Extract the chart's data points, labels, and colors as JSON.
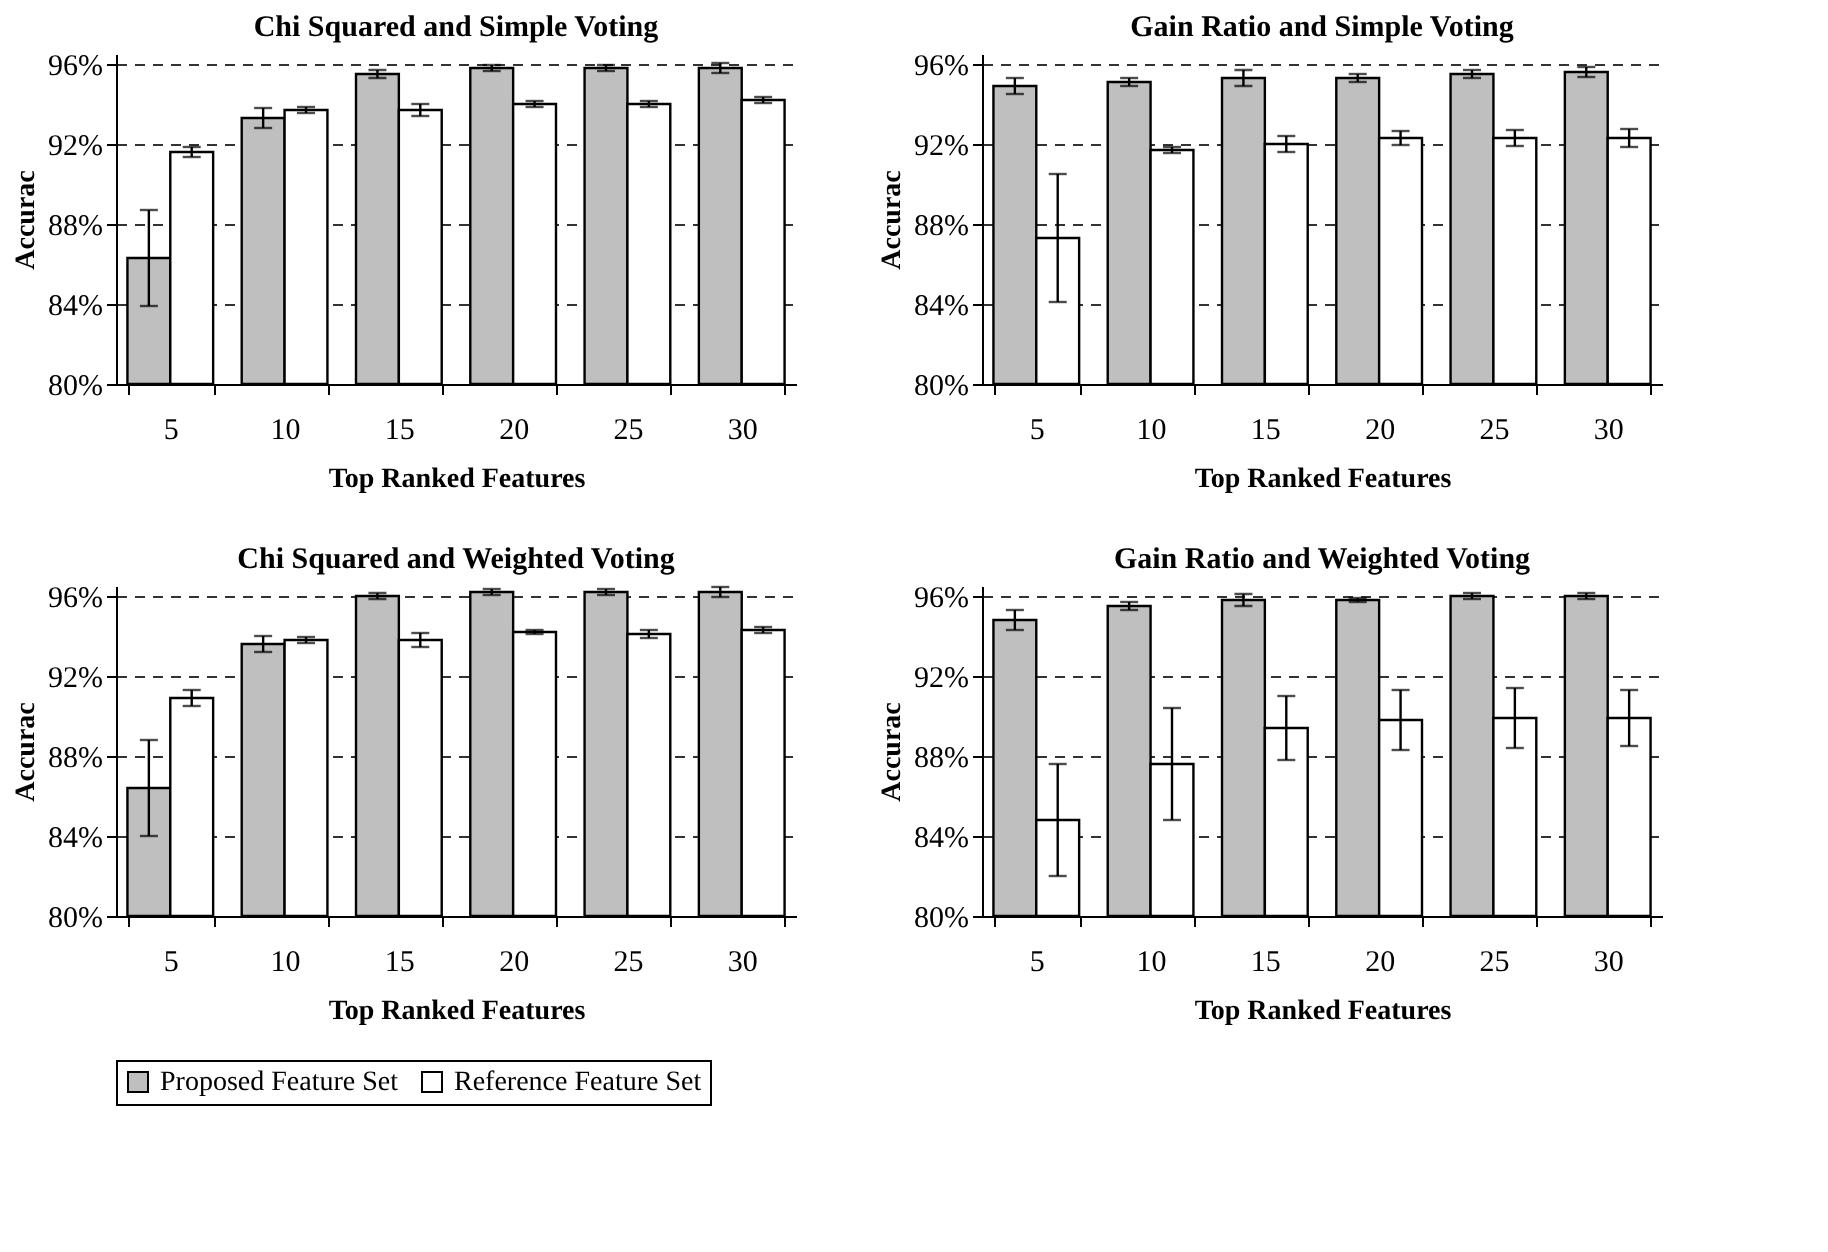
{
  "chart_data": [
    {
      "type": "bar",
      "title": "Chi Squared and Simple Voting",
      "xlabel": "Top Ranked Features",
      "ylabel": "Accurac",
      "categories": [
        "5",
        "10",
        "15",
        "20",
        "25",
        "30"
      ],
      "ylim": [
        80,
        96.5
      ],
      "yticks": [
        {
          "value": 80,
          "label": "80%"
        },
        {
          "value": 84,
          "label": "84%"
        },
        {
          "value": 88,
          "label": "88%"
        },
        {
          "value": 92,
          "label": "92%"
        },
        {
          "value": 96,
          "label": "96%"
        }
      ],
      "grid": "y",
      "legend": "bottom",
      "series": [
        {
          "name": "Proposed Feature Set",
          "color": "#bfbfbf",
          "values": [
            86.3,
            93.3,
            95.5,
            95.8,
            95.8,
            95.8
          ],
          "errors": [
            2.4,
            0.5,
            0.2,
            0.15,
            0.15,
            0.25
          ]
        },
        {
          "name": "Reference Feature Set",
          "color": "#ffffff",
          "values": [
            91.6,
            93.7,
            93.7,
            94.0,
            94.0,
            94.2
          ],
          "errors": [
            0.25,
            0.15,
            0.3,
            0.15,
            0.15,
            0.15
          ]
        }
      ]
    },
    {
      "type": "bar",
      "title": "Gain Ratio and Simple Voting",
      "xlabel": "Top Ranked Features",
      "ylabel": "Accurac",
      "categories": [
        "5",
        "10",
        "15",
        "20",
        "25",
        "30"
      ],
      "ylim": [
        80,
        96.5
      ],
      "yticks": [
        {
          "value": 80,
          "label": "80%"
        },
        {
          "value": 84,
          "label": "84%"
        },
        {
          "value": 88,
          "label": "88%"
        },
        {
          "value": 92,
          "label": "92%"
        },
        {
          "value": 96,
          "label": "96%"
        }
      ],
      "grid": "y",
      "legend": "bottom",
      "series": [
        {
          "name": "Proposed Feature Set",
          "color": "#bfbfbf",
          "values": [
            94.9,
            95.1,
            95.3,
            95.3,
            95.5,
            95.6
          ],
          "errors": [
            0.4,
            0.2,
            0.4,
            0.2,
            0.2,
            0.25
          ]
        },
        {
          "name": "Reference Feature Set",
          "color": "#ffffff",
          "values": [
            87.3,
            91.7,
            92.0,
            92.3,
            92.3,
            92.3
          ],
          "errors": [
            3.2,
            0.15,
            0.4,
            0.35,
            0.4,
            0.45
          ]
        }
      ]
    },
    {
      "type": "bar",
      "title": "Chi Squared and Weighted Voting",
      "xlabel": "Top Ranked Features",
      "ylabel": "Accurac",
      "categories": [
        "5",
        "10",
        "15",
        "20",
        "25",
        "30"
      ],
      "ylim": [
        80,
        96.5
      ],
      "yticks": [
        {
          "value": 80,
          "label": "80%"
        },
        {
          "value": 84,
          "label": "84%"
        },
        {
          "value": 88,
          "label": "88%"
        },
        {
          "value": 92,
          "label": "92%"
        },
        {
          "value": 96,
          "label": "96%"
        }
      ],
      "grid": "y",
      "legend": "bottom",
      "series": [
        {
          "name": "Proposed Feature Set",
          "color": "#bfbfbf",
          "values": [
            86.4,
            93.6,
            96.0,
            96.2,
            96.2,
            96.2
          ],
          "errors": [
            2.4,
            0.4,
            0.15,
            0.15,
            0.15,
            0.25
          ]
        },
        {
          "name": "Reference Feature Set",
          "color": "#ffffff",
          "values": [
            90.9,
            93.8,
            93.8,
            94.2,
            94.1,
            94.3
          ],
          "errors": [
            0.4,
            0.15,
            0.35,
            0.1,
            0.2,
            0.15
          ]
        }
      ]
    },
    {
      "type": "bar",
      "title": "Gain Ratio and Weighted Voting",
      "xlabel": "Top Ranked Features",
      "ylabel": "Accurac",
      "categories": [
        "5",
        "10",
        "15",
        "20",
        "25",
        "30"
      ],
      "ylim": [
        80,
        96.5
      ],
      "yticks": [
        {
          "value": 80,
          "label": "80%"
        },
        {
          "value": 84,
          "label": "84%"
        },
        {
          "value": 88,
          "label": "88%"
        },
        {
          "value": 92,
          "label": "92%"
        },
        {
          "value": 96,
          "label": "96%"
        }
      ],
      "grid": "y",
      "legend": "bottom",
      "series": [
        {
          "name": "Proposed Feature Set",
          "color": "#bfbfbf",
          "values": [
            94.8,
            95.5,
            95.8,
            95.8,
            96.0,
            96.0
          ],
          "errors": [
            0.5,
            0.2,
            0.3,
            0.1,
            0.15,
            0.15
          ]
        },
        {
          "name": "Reference Feature Set",
          "color": "#ffffff",
          "values": [
            84.8,
            87.6,
            89.4,
            89.8,
            89.9,
            89.9
          ],
          "errors": [
            2.8,
            2.8,
            1.6,
            1.5,
            1.5,
            1.4
          ]
        }
      ]
    }
  ]
}
